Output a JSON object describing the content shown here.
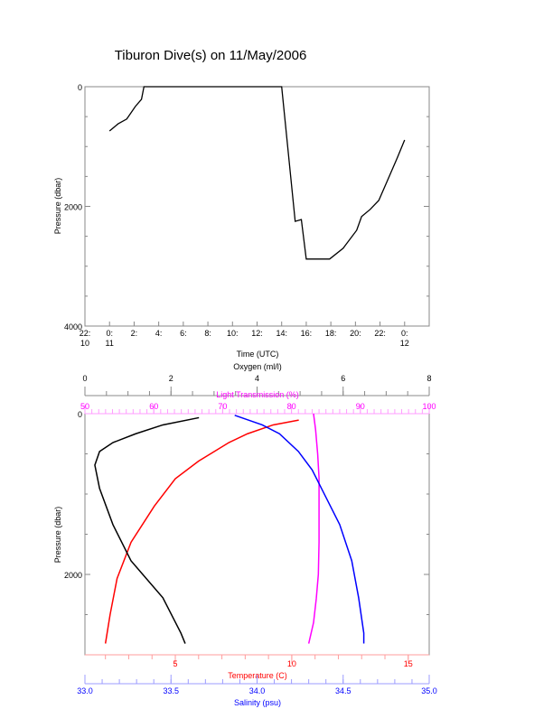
{
  "title": "Tiburon Dive(s) on 11/May/2006",
  "chart_data": [
    {
      "type": "line",
      "title": "Tiburon Dive(s) on 11/May/2006",
      "xlabel": "Time (UTC)",
      "ylabel": "Pressure (dbar)",
      "xlim": [
        -2,
        26
      ],
      "ylim": [
        4000,
        0
      ],
      "xticks": [
        {
          "v": -2,
          "l1": "22:",
          "l2": "10"
        },
        {
          "v": 0,
          "l1": "0:",
          "l2": "11"
        },
        {
          "v": 2,
          "l1": "2:",
          "l2": ""
        },
        {
          "v": 4,
          "l1": "4:",
          "l2": ""
        },
        {
          "v": 6,
          "l1": "6:",
          "l2": ""
        },
        {
          "v": 8,
          "l1": "8:",
          "l2": ""
        },
        {
          "v": 10,
          "l1": "10:",
          "l2": ""
        },
        {
          "v": 12,
          "l1": "12:",
          "l2": ""
        },
        {
          "v": 14,
          "l1": "14:",
          "l2": ""
        },
        {
          "v": 16,
          "l1": "16:",
          "l2": ""
        },
        {
          "v": 18,
          "l1": "18:",
          "l2": ""
        },
        {
          "v": 20,
          "l1": "20:",
          "l2": ""
        },
        {
          "v": 22,
          "l1": "22:",
          "l2": ""
        },
        {
          "v": 24,
          "l1": "0:",
          "l2": "12"
        }
      ],
      "yticks": [
        "0",
        "2000",
        "4000"
      ],
      "x": [
        0,
        0.7,
        1.4,
        2.1,
        2.6,
        2.8,
        14.0,
        15.1,
        15.6,
        16.0,
        17.9,
        19.0,
        20.1,
        20.5,
        21.2,
        21.9,
        22.6,
        23.4,
        24.0
      ],
      "y": [
        740,
        620,
        540,
        330,
        210,
        0,
        0,
        2250,
        2220,
        2880,
        2880,
        2700,
        2400,
        2170,
        2050,
        1900,
        1570,
        1190,
        890
      ]
    },
    {
      "type": "line",
      "ylabel": "Pressure (dbar)",
      "ylim": [
        3000,
        0
      ],
      "yticks": [
        "0",
        "2000"
      ],
      "axes": {
        "oxygen": {
          "label": "Oxygen (ml/l)",
          "range": [
            0,
            8
          ],
          "ticks": [
            "0",
            "2",
            "4",
            "6",
            "8"
          ],
          "color": "#000000"
        },
        "light": {
          "label": "Light Transmission (%)",
          "range": [
            50,
            100
          ],
          "ticks": [
            "50",
            "60",
            "70",
            "80",
            "90",
            "100"
          ],
          "color": "#ff00ff"
        },
        "temperature": {
          "label": "Temperature (C)",
          "range": [
            1.12,
            15.9
          ],
          "ticks": [
            "5",
            "10",
            "15"
          ],
          "color": "#ff0000"
        },
        "salinity": {
          "label": "Salinity (psu)",
          "range": [
            33,
            35
          ],
          "ticks": [
            "33.0",
            "33.5",
            "34.0",
            "34.5",
            "35.0"
          ],
          "color": "#0000ff"
        }
      },
      "series": [
        {
          "name": "Temperature",
          "axis": "temperature",
          "color": "#ff0000",
          "pressure": [
            80,
            140,
            250,
            360,
            590,
            810,
            1150,
            1600,
            2050,
            2500,
            2860
          ],
          "values": [
            10.3,
            9.2,
            8.1,
            7.3,
            6.0,
            5.0,
            4.1,
            3.1,
            2.5,
            2.2,
            2.0
          ]
        },
        {
          "name": "Oxygen",
          "axis": "oxygen",
          "color": "#000000",
          "pressure": [
            50,
            140,
            250,
            360,
            470,
            640,
            930,
            1380,
            1830,
            2290,
            2730,
            2860
          ],
          "values": [
            2.65,
            1.81,
            1.18,
            0.65,
            0.34,
            0.23,
            0.34,
            0.65,
            1.07,
            1.81,
            2.23,
            2.33
          ]
        },
        {
          "name": "Light Transmission",
          "axis": "light",
          "color": "#ff00ff",
          "pressure": [
            0,
            200,
            500,
            800,
            1200,
            1600,
            2000,
            2300,
            2600,
            2860
          ],
          "values": [
            83.2,
            83.5,
            83.8,
            84.0,
            84.0,
            84.0,
            83.9,
            83.6,
            83.2,
            82.5
          ]
        },
        {
          "name": "Salinity",
          "axis": "salinity",
          "color": "#0000ff",
          "pressure": [
            20,
            140,
            250,
            470,
            700,
            1040,
            1380,
            1830,
            2290,
            2730,
            2860
          ],
          "values": [
            33.87,
            34.03,
            34.13,
            34.24,
            34.32,
            34.4,
            34.48,
            34.55,
            34.59,
            34.62,
            34.62
          ]
        }
      ]
    }
  ]
}
